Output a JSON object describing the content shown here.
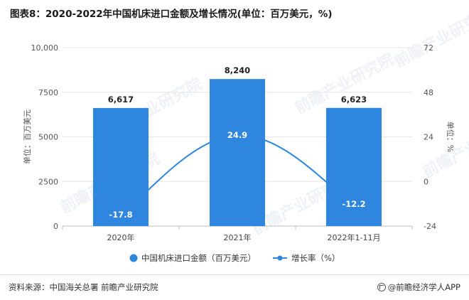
{
  "title": "图表8：2020-2022年中国机床进口金额及增长情况(单位：百万美元，%)",
  "source": "资料来源：中国海关总署 前瞻产业研究院",
  "brand": "@前瞻经济学人APP",
  "watermark": "前瞻产业研究院",
  "colors": {
    "bar": "#2e86de",
    "line": "#2e86de",
    "grid": "#e6e6e6",
    "axis": "#888888"
  },
  "chart_data": {
    "type": "bar",
    "categories": [
      "2020年",
      "2021年",
      "2022年1-11月"
    ],
    "series": [
      {
        "name": "中国机床进口金额（百万美元）",
        "type": "bar",
        "axis": "left",
        "values": [
          6617,
          8240,
          6623
        ],
        "labels": [
          "6,617",
          "8,240",
          "6,623"
        ]
      },
      {
        "name": "增长率（%）",
        "type": "line",
        "axis": "right",
        "values": [
          -17.8,
          24.9,
          -12.2
        ],
        "labels": [
          "-17.8",
          "24.9",
          "-12.2"
        ]
      }
    ],
    "ylabel": "单位：百万美元",
    "y2label": "单位：%",
    "ylim": [
      0,
      10000
    ],
    "y2lim": [
      -24,
      72
    ],
    "yticks": [
      "0",
      "2500",
      "5000",
      "7500",
      "10,000"
    ],
    "y2ticks": [
      "-24",
      "0",
      "24",
      "48",
      "72"
    ],
    "grid": true,
    "legend": "bottom"
  }
}
